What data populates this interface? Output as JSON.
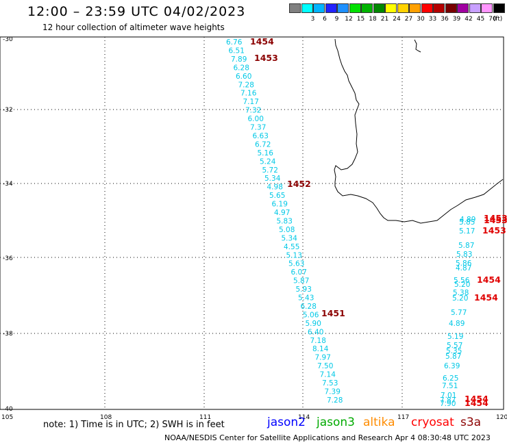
{
  "title": "12:00 – 23:59 UTC 04/02/2023",
  "subtitle": "12 hour collection of altimeter wave heights",
  "legend": {
    "unit": "(ft)",
    "bins": [
      {
        "label": "",
        "color": "#808080"
      },
      {
        "label": "3",
        "color": "#00ffff"
      },
      {
        "label": "6",
        "color": "#00b4ff"
      },
      {
        "label": "9",
        "color": "#2222ff"
      },
      {
        "label": "12",
        "color": "#1e90ff"
      },
      {
        "label": "15",
        "color": "#00e000"
      },
      {
        "label": "18",
        "color": "#00b400"
      },
      {
        "label": "21",
        "color": "#008800"
      },
      {
        "label": "24",
        "color": "#ffff00"
      },
      {
        "label": "27",
        "color": "#ffd200"
      },
      {
        "label": "30",
        "color": "#ffa000"
      },
      {
        "label": "33",
        "color": "#ff0000"
      },
      {
        "label": "36",
        "color": "#b40000"
      },
      {
        "label": "39",
        "color": "#780000"
      },
      {
        "label": "42",
        "color": "#a000a0"
      },
      {
        "label": "45",
        "color": "#c8a0ff"
      },
      {
        "label": "70",
        "color": "#ff96ff"
      },
      {
        "label": "",
        "color": "#000000"
      }
    ]
  },
  "map": {
    "lat_labels": [
      "-30",
      "-32",
      "-34",
      "-36",
      "-38",
      "-40"
    ],
    "lon_labels": [
      "105",
      "108",
      "111",
      "114",
      "117",
      "120"
    ]
  },
  "track_a": {
    "color": "#00c8e6",
    "values": [
      "6.76",
      "6.51",
      "7.89",
      "6.28",
      "6.60",
      "7.28",
      "7.16",
      "7.17",
      "7.32",
      "6.00",
      "7.37",
      "6.63",
      "6.72",
      "5.16",
      "5.24",
      "5.72",
      "5.34",
      "4.98",
      "5.65",
      "6.19",
      "4.97",
      "5.83",
      "5.08",
      "5.34",
      "4.55",
      "5.13",
      "5.63",
      "6.07",
      "5.87",
      "5.93",
      "5.43",
      "6.28",
      "5.06",
      "5.90",
      "6.40",
      "7.18",
      "8.14",
      "7.97",
      "7.50",
      "7.14",
      "7.53",
      "7.39",
      "7.28"
    ]
  },
  "track_b": {
    "color": "#00c8e6",
    "values": [
      "4.89",
      "5.85",
      "5.17",
      "5.87",
      "5.83",
      "5.86",
      "4.87",
      "5.56",
      "5.20",
      "5.38",
      "5.20",
      "5.77",
      "4.89",
      "5.19",
      "5.57",
      "5.35",
      "5.87",
      "6.39",
      "6.25",
      "7.51",
      "7.01",
      "7.87",
      "7.90"
    ]
  },
  "time_labels": [
    {
      "text": "1454",
      "color": "#8b0000"
    },
    {
      "text": "1453",
      "color": "#8b0000"
    },
    {
      "text": "1452",
      "color": "#8b0000"
    },
    {
      "text": "1451",
      "color": "#8b0000"
    },
    {
      "text": "1453",
      "color": "#e00000"
    },
    {
      "text": "1453",
      "color": "#e00000"
    },
    {
      "text": "1453",
      "color": "#e00000"
    },
    {
      "text": "1454",
      "color": "#e00000"
    },
    {
      "text": "1454",
      "color": "#e00000"
    },
    {
      "text": "1454",
      "color": "#e00000"
    },
    {
      "text": "1454",
      "color": "#e00000"
    }
  ],
  "note": "note:  1) Time is in UTC;  2) SWH is in feet",
  "satellites": [
    {
      "name": "jason2",
      "color": "#0000ff"
    },
    {
      "name": "jason3",
      "color": "#00aa00"
    },
    {
      "name": "altika",
      "color": "#ff8c00"
    },
    {
      "name": "cryosat",
      "color": "#ff0000"
    },
    {
      "name": "s3a",
      "color": "#8b0000"
    }
  ],
  "footer": "NOAA/NESDIS Center for Satellite Applications and Research    Apr  4 08:30:48 UTC 2023"
}
